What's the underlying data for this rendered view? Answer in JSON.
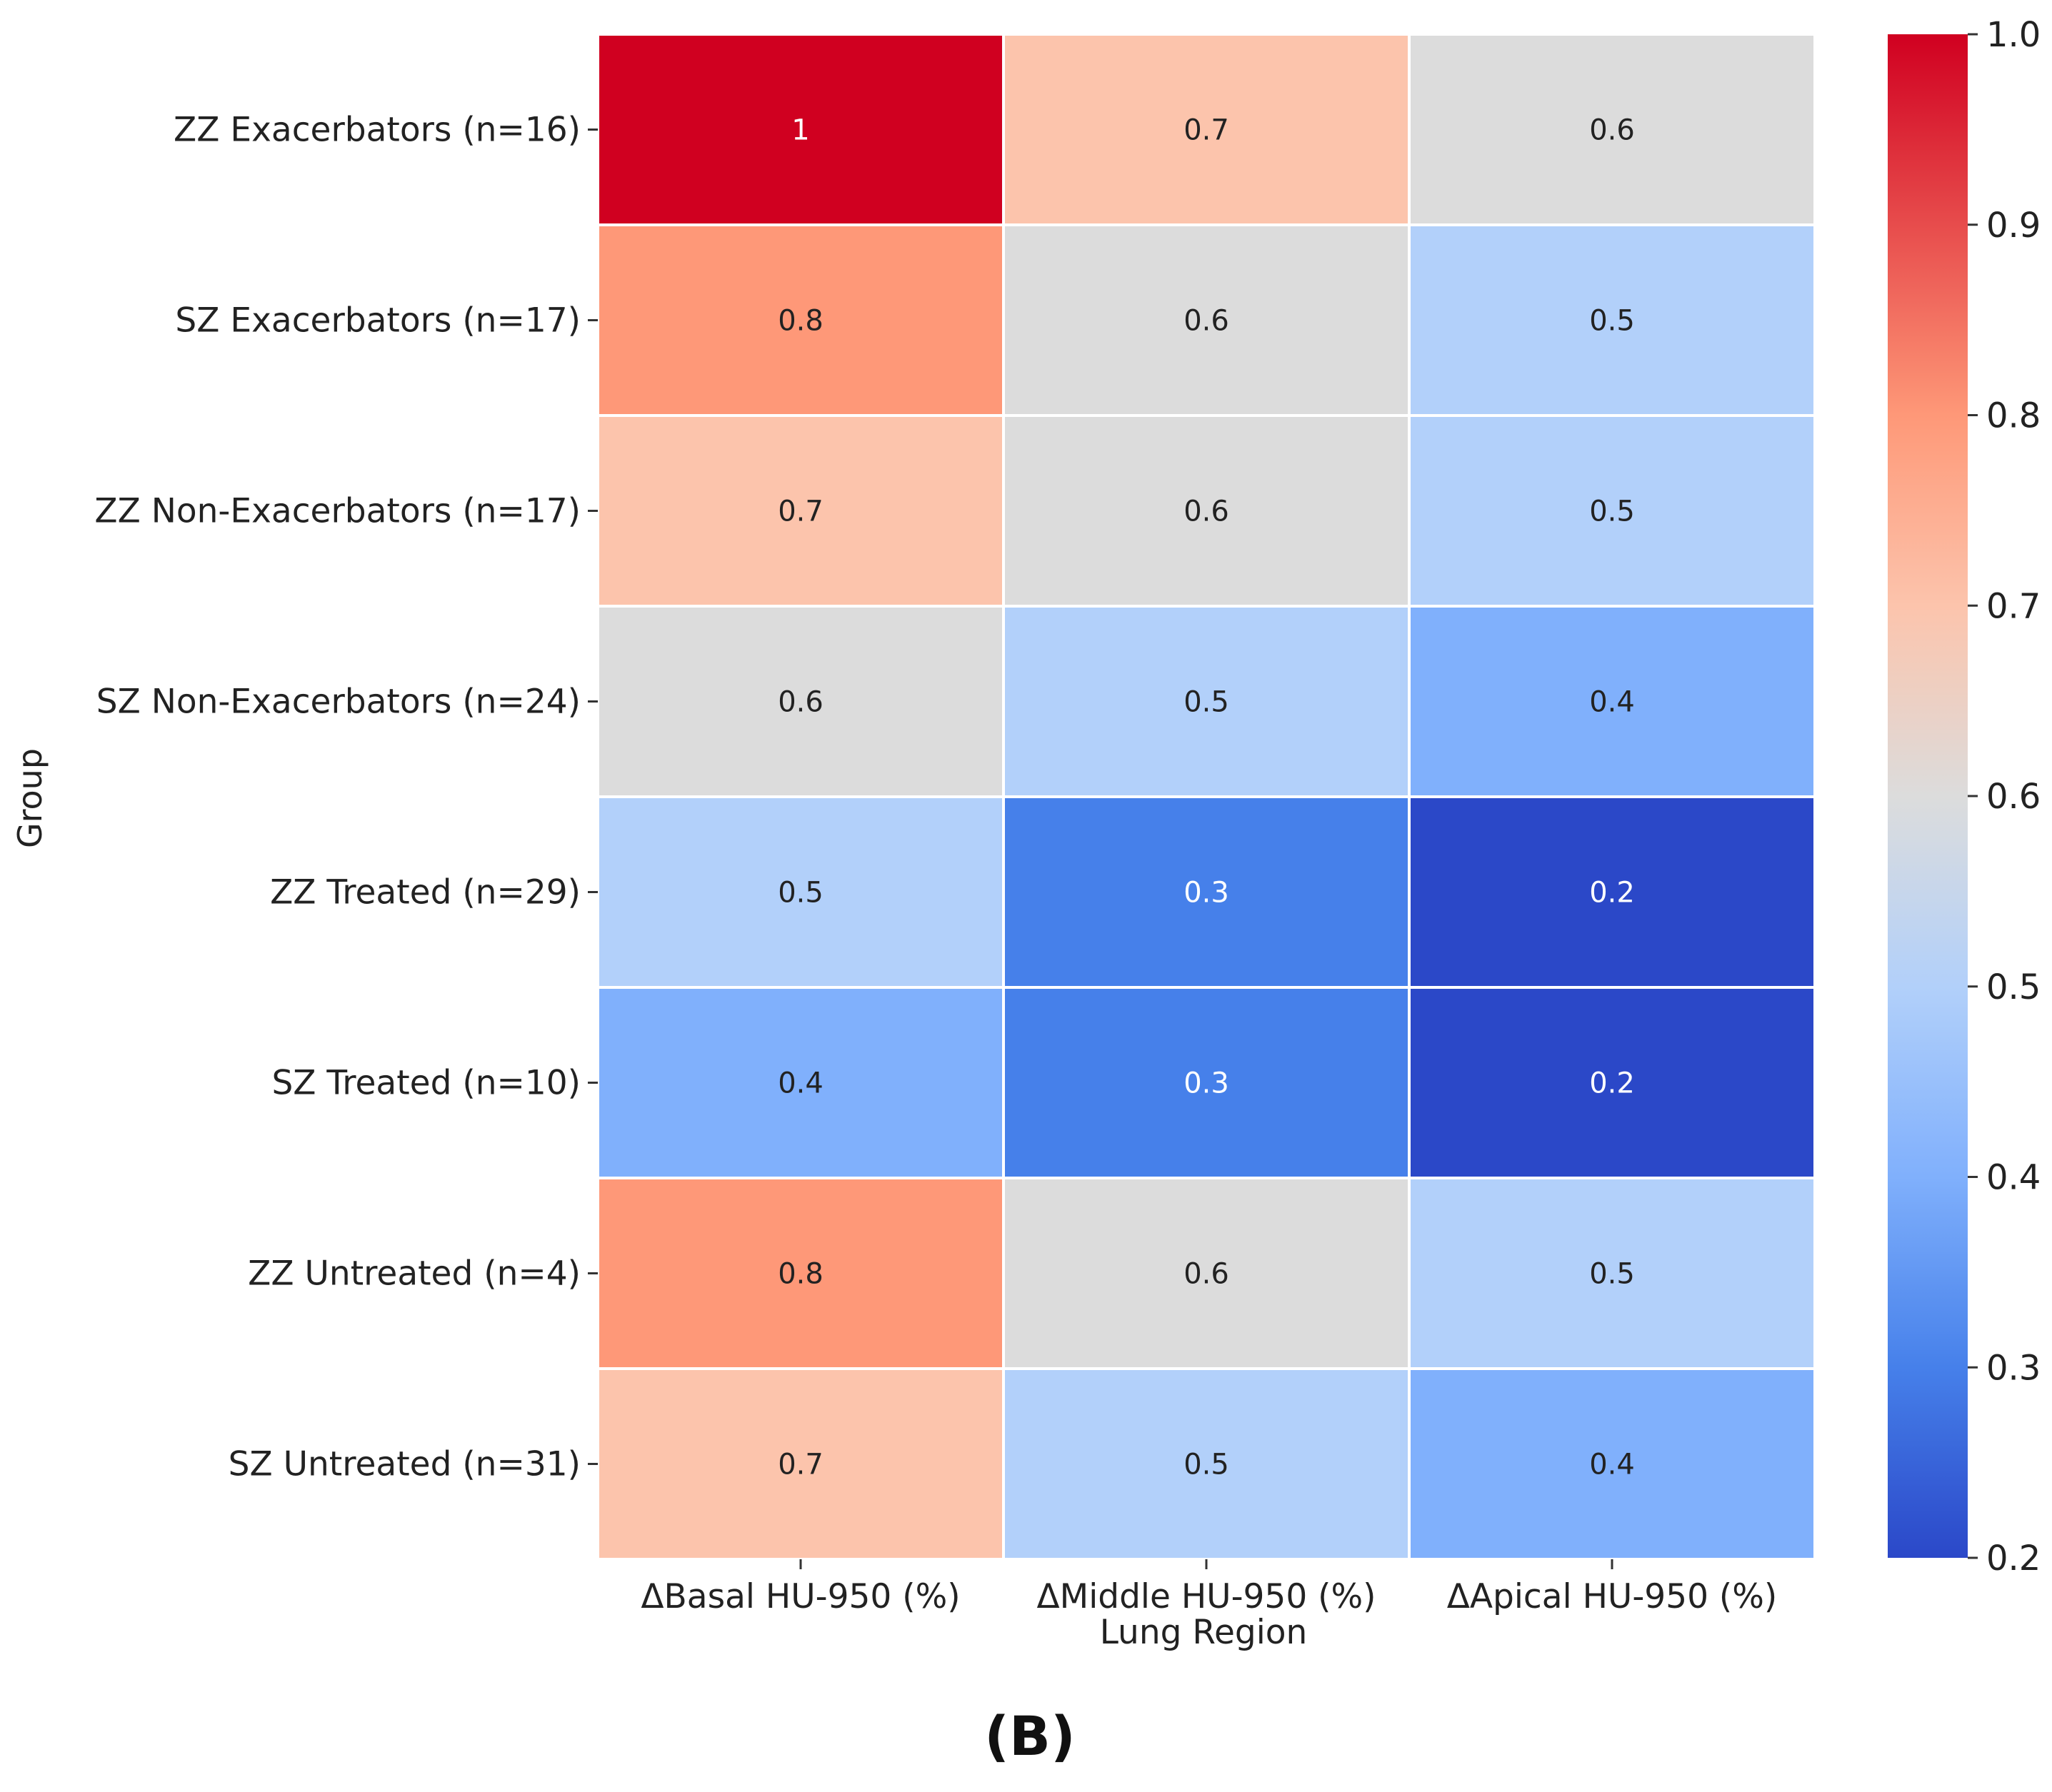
{
  "chart_data": {
    "type": "heatmap",
    "xlabel": "Lung Region",
    "ylabel": "Group",
    "columns": [
      "ΔBasal HU-950 (%)",
      "ΔMiddle HU-950 (%)",
      "ΔApical HU-950 (%)"
    ],
    "rows": [
      "ZZ Exacerbators (n=16)",
      "SZ Exacerbators (n=17)",
      "ZZ Non-Exacerbators (n=17)",
      "SZ Non-Exacerbators (n=24)",
      "ZZ Treated (n=29)",
      "SZ Treated (n=10)",
      "ZZ Untreated (n=4)",
      "SZ Untreated (n=31)"
    ],
    "values": [
      [
        1.0,
        0.7,
        0.6
      ],
      [
        0.8,
        0.6,
        0.5
      ],
      [
        0.7,
        0.6,
        0.5
      ],
      [
        0.6,
        0.5,
        0.4
      ],
      [
        0.5,
        0.3,
        0.2
      ],
      [
        0.4,
        0.3,
        0.2
      ],
      [
        0.8,
        0.6,
        0.5
      ],
      [
        0.7,
        0.5,
        0.4
      ]
    ],
    "cell_labels": [
      [
        "1",
        "0.7",
        "0.6"
      ],
      [
        "0.8",
        "0.6",
        "0.5"
      ],
      [
        "0.7",
        "0.6",
        "0.5"
      ],
      [
        "0.6",
        "0.5",
        "0.4"
      ],
      [
        "0.5",
        "0.3",
        "0.2"
      ],
      [
        "0.4",
        "0.3",
        "0.2"
      ],
      [
        "0.8",
        "0.6",
        "0.5"
      ],
      [
        "0.7",
        "0.5",
        "0.4"
      ]
    ],
    "colorbar": {
      "range": [
        0.2,
        1.0
      ],
      "ticks": [
        0.2,
        0.3,
        0.4,
        0.5,
        0.6,
        0.7,
        0.8,
        0.9,
        1.0
      ],
      "tick_labels": [
        "0.2",
        "0.3",
        "0.4",
        "0.5",
        "0.6",
        "0.7",
        "0.8",
        "0.9",
        "1.0"
      ],
      "colormap": "coolwarm"
    },
    "panel_label": "(B)"
  },
  "colors": {
    "palette": {
      "0.2": "#2b48c8",
      "0.3": "#4680ea",
      "0.4": "#80b0fc",
      "0.5": "#b2d0fa",
      "0.6": "#dcdcdc",
      "0.7": "#fcc4ac",
      "0.8": "#fe9878",
      "1.0": "#d00020"
    },
    "cell_border": "#ffffff",
    "text_dark": "#222222",
    "text_light": "#ffffff"
  }
}
